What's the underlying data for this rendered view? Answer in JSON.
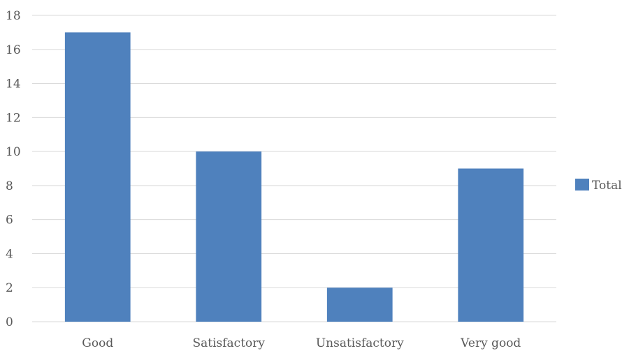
{
  "chart_data": {
    "type": "bar",
    "title": "",
    "xlabel": "",
    "ylabel": "",
    "categories": [
      "Good",
      "Satisfactory",
      "Unsatisfactory",
      "Very good"
    ],
    "series": [
      {
        "name": "Total",
        "values": [
          17,
          10,
          2,
          9
        ],
        "color": "#4f81bd"
      }
    ],
    "ylim": [
      0,
      18
    ],
    "yticks": [
      "0",
      "2",
      "4",
      "6",
      "8",
      "10",
      "12",
      "14",
      "16",
      "18"
    ],
    "grid": true,
    "legend_position": "right"
  }
}
